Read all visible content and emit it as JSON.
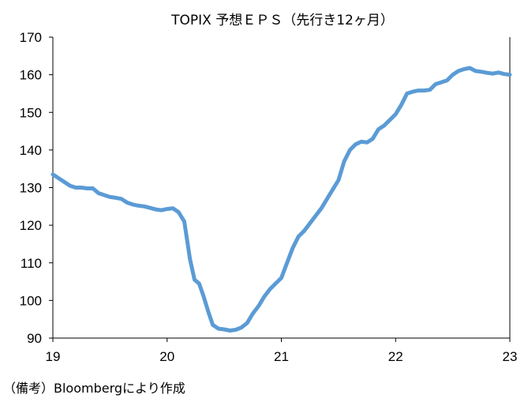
{
  "chart_data": {
    "type": "line",
    "title": "TOPIX 予想ＥＰＳ（先行き12ヶ月）",
    "xlabel": "",
    "ylabel": "",
    "x_tick_labels": [
      "19",
      "20",
      "21",
      "22",
      "23"
    ],
    "x_ticks": [
      19,
      20,
      21,
      22,
      23
    ],
    "xlim": [
      19,
      23
    ],
    "ylim": [
      90,
      170
    ],
    "y_ticks": [
      90,
      100,
      110,
      120,
      130,
      140,
      150,
      160,
      170
    ],
    "y_tick_labels": [
      "90",
      "100",
      "110",
      "120",
      "130",
      "140",
      "150",
      "160",
      "170"
    ],
    "grid": false,
    "legend": "none",
    "series": [
      {
        "color": "#5b9bd5",
        "x": [
          19.0,
          19.05,
          19.1,
          19.15,
          19.2,
          19.25,
          19.3,
          19.35,
          19.4,
          19.45,
          19.5,
          19.55,
          19.6,
          19.65,
          19.7,
          19.75,
          19.8,
          19.85,
          19.9,
          19.95,
          20.0,
          20.05,
          20.1,
          20.15,
          20.2,
          20.24,
          20.28,
          20.32,
          20.36,
          20.4,
          20.45,
          20.5,
          20.55,
          20.6,
          20.65,
          20.7,
          20.75,
          20.8,
          20.85,
          20.9,
          20.95,
          21.0,
          21.05,
          21.1,
          21.15,
          21.2,
          21.25,
          21.3,
          21.35,
          21.4,
          21.45,
          21.5,
          21.55,
          21.6,
          21.65,
          21.7,
          21.75,
          21.8,
          21.85,
          21.9,
          21.95,
          22.0,
          22.05,
          22.1,
          22.15,
          22.2,
          22.25,
          22.3,
          22.35,
          22.4,
          22.45,
          22.5,
          22.55,
          22.6,
          22.65,
          22.7,
          22.75,
          22.8,
          22.85,
          22.9,
          22.95,
          23.0
        ],
        "y": [
          133.5,
          132.5,
          131.5,
          130.5,
          130.0,
          130.0,
          129.8,
          129.8,
          128.5,
          128.0,
          127.5,
          127.3,
          127.0,
          126.0,
          125.5,
          125.2,
          125.0,
          124.6,
          124.2,
          124.0,
          124.3,
          124.5,
          123.5,
          121.0,
          111.0,
          105.5,
          104.5,
          101.0,
          97.0,
          93.5,
          92.5,
          92.3,
          92.0,
          92.2,
          92.8,
          94.0,
          96.5,
          98.5,
          101.0,
          103.0,
          104.5,
          106.0,
          110.0,
          114.0,
          117.0,
          118.5,
          120.5,
          122.5,
          124.5,
          127.0,
          129.5,
          132.0,
          137.0,
          140.0,
          141.5,
          142.2,
          142.0,
          143.0,
          145.5,
          146.5,
          148.0,
          149.5,
          152.0,
          155.0,
          155.5,
          155.8,
          155.8,
          156.0,
          157.5,
          158.0,
          158.5,
          160.0,
          161.0,
          161.5,
          161.8,
          161.0,
          160.8,
          160.5,
          160.3,
          160.6,
          160.2,
          160.0
        ]
      }
    ]
  },
  "source_note": "（備考）Bloombergにより作成"
}
